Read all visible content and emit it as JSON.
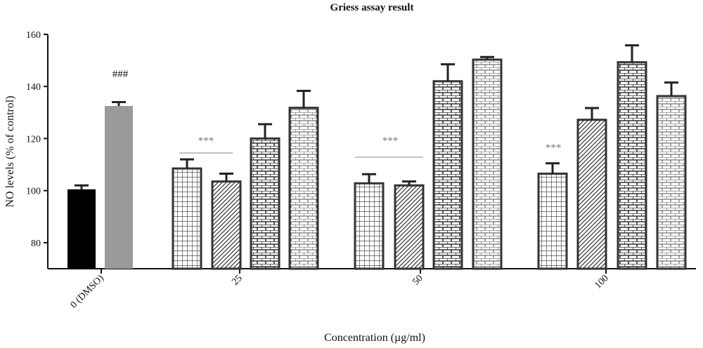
{
  "chart_data": {
    "type": "bar",
    "title": "Griess assay result",
    "xlabel": "Concentration (µg/ml)",
    "ylabel": "NO levels (% of control)",
    "ylim": [
      70,
      160
    ],
    "yticks": [
      80,
      100,
      120,
      140,
      160
    ],
    "categories": [
      "0 (DMSO)",
      "25",
      "50",
      "100"
    ],
    "bars": [
      {
        "category": "0 (DMSO)",
        "value": 100.5,
        "error": 1.5,
        "fill": "black"
      },
      {
        "category": "0 (DMSO)",
        "value": 132.5,
        "error": 1.5,
        "fill": "gray"
      },
      {
        "category": "25",
        "value": 108.5,
        "error": 3.5,
        "fill": "grid"
      },
      {
        "category": "25",
        "value": 103.5,
        "error": 3.0,
        "fill": "diagonal"
      },
      {
        "category": "25",
        "value": 120.0,
        "error": 5.5,
        "fill": "brick-dark"
      },
      {
        "category": "25",
        "value": 131.8,
        "error": 6.5,
        "fill": "brick-light"
      },
      {
        "category": "50",
        "value": 102.8,
        "error": 3.5,
        "fill": "grid"
      },
      {
        "category": "50",
        "value": 102.0,
        "error": 1.5,
        "fill": "diagonal"
      },
      {
        "category": "50",
        "value": 142.0,
        "error": 6.5,
        "fill": "brick-dark"
      },
      {
        "category": "50",
        "value": 150.3,
        "error": 1.0,
        "fill": "brick-light"
      },
      {
        "category": "100",
        "value": 106.5,
        "error": 4.0,
        "fill": "grid"
      },
      {
        "category": "100",
        "value": 127.2,
        "error": 4.5,
        "fill": "diagonal"
      },
      {
        "category": "100",
        "value": 149.3,
        "error": 6.5,
        "fill": "brick-dark"
      },
      {
        "category": "100",
        "value": 136.3,
        "error": 5.2,
        "fill": "brick-light"
      }
    ],
    "annotations": [
      {
        "text": "###",
        "category": "0 (DMSO)",
        "color": "#111111"
      },
      {
        "text": "***",
        "category": "25",
        "color": "#777777",
        "line": true
      },
      {
        "text": "***",
        "category": "50",
        "color": "#777777",
        "line": true
      },
      {
        "text": "***",
        "category": "100",
        "color": "#777777",
        "line": false
      }
    ]
  }
}
